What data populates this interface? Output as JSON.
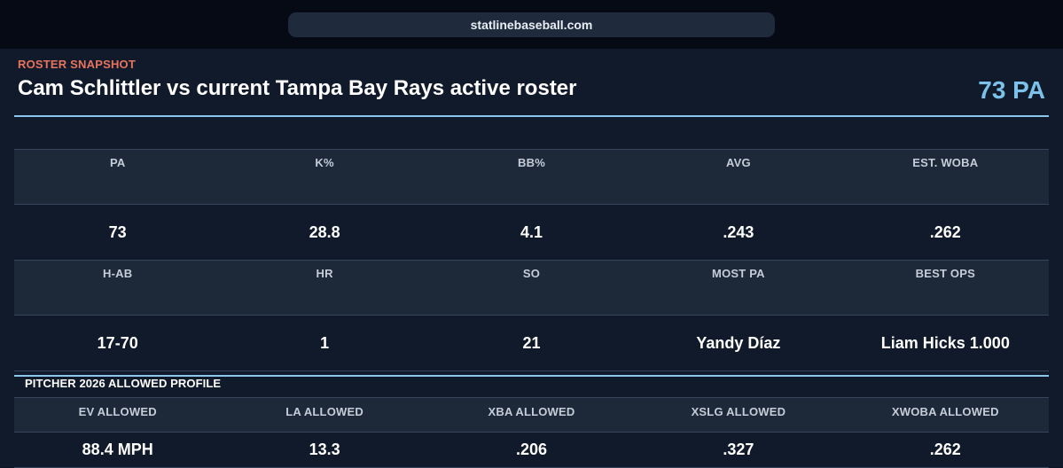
{
  "browser": {
    "url": "statlinebaseball.com"
  },
  "header": {
    "eyebrow": "ROSTER SNAPSHOT",
    "title": "Cam Schlittler vs current Tampa Bay Rays active roster",
    "pa_total": "73 PA"
  },
  "stats_row1": {
    "headers": [
      "PA",
      "K%",
      "BB%",
      "AVG",
      "EST. WOBA"
    ],
    "values": [
      "73",
      "28.8",
      "4.1",
      ".243",
      ".262"
    ]
  },
  "stats_row2": {
    "headers": [
      "H-AB",
      "HR",
      "SO",
      "MOST PA",
      "BEST OPS"
    ],
    "values": [
      "17-70",
      "1",
      "21",
      "Yandy Díaz",
      "Liam Hicks 1.000"
    ]
  },
  "pitcher_profile": {
    "label": "PITCHER 2026 ALLOWED PROFILE",
    "headers": [
      "EV ALLOWED",
      "LA ALLOWED",
      "XBA ALLOWED",
      "XSLG ALLOWED",
      "XWOBA ALLOWED"
    ],
    "values": [
      "88.4 MPH",
      "13.3",
      ".206",
      ".327",
      ".262"
    ]
  },
  "colors": {
    "accent_eyebrow": "#e8735c",
    "accent_pa": "#7cc1ea",
    "divider": "#8cc6ec",
    "background": "#111a2b",
    "header_cell": "#1d2838"
  }
}
